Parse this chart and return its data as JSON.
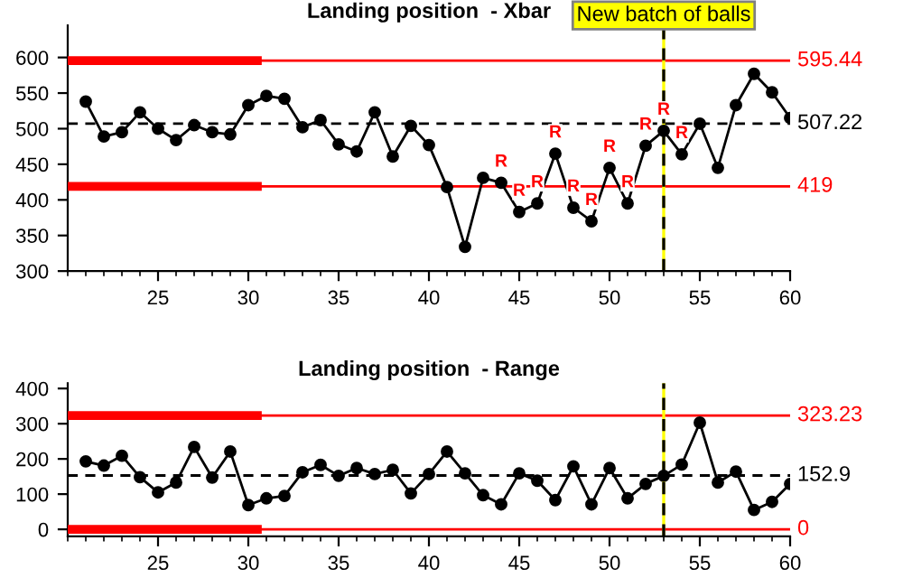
{
  "chart_data": [
    {
      "type": "line",
      "title": "Landing position  - Xbar",
      "xlim": [
        20,
        60
      ],
      "xticks": [
        25,
        30,
        35,
        40,
        45,
        50,
        55,
        60
      ],
      "ylim": [
        300,
        645
      ],
      "yticks": [
        300,
        350,
        400,
        450,
        500,
        550,
        600
      ],
      "grid": false,
      "legend": false,
      "series": [
        {
          "color": "#000000",
          "marker": "circle",
          "x": [
            21,
            22,
            23,
            24,
            25,
            26,
            27,
            28,
            29,
            30,
            31,
            32,
            33,
            34,
            35,
            36,
            37,
            38,
            39,
            40,
            41,
            42,
            43,
            44,
            45,
            46,
            47,
            48,
            49,
            50,
            51,
            52,
            53,
            54,
            55,
            56,
            57,
            58,
            59,
            60
          ],
          "values": [
            538,
            489,
            495,
            523,
            500,
            484,
            505,
            495,
            492,
            533,
            546,
            542,
            502,
            512,
            478,
            468,
            523,
            461,
            504,
            477,
            418,
            334,
            431,
            424,
            383,
            395,
            465,
            389,
            370,
            445,
            395,
            476,
            497,
            464,
            507,
            445,
            533,
            577,
            551,
            515
          ]
        },
        {
          "color": "#ff0000",
          "marker": "none",
          "x": [
            20,
            30.5
          ],
          "values": [
            595.44,
            595.44
          ]
        },
        {
          "color": "#ff0000",
          "marker": "none",
          "x": [
            20,
            30.5
          ],
          "values": [
            419,
            419
          ]
        }
      ],
      "ref_lines": [
        {
          "axis": "y",
          "value": 595.44,
          "label": "595.44",
          "color": "#ff0000",
          "line_style": "solid"
        },
        {
          "axis": "y",
          "value": 507.22,
          "label": "507.22",
          "color": "#000000",
          "line_style": "dashed"
        },
        {
          "axis": "y",
          "value": 419,
          "label": "419",
          "color": "#ff0000",
          "line_style": "solid"
        },
        {
          "axis": "x",
          "value": 53,
          "label": "New batch of balls",
          "color": "#ffff00",
          "line_style": "solid"
        },
        {
          "axis": "x",
          "value": 53,
          "color": "#000000",
          "line_style": "dashed"
        }
      ],
      "annotations": [
        {
          "text": "R",
          "x": 44,
          "y": 424
        },
        {
          "text": "R",
          "x": 45,
          "y": 383
        },
        {
          "text": "R",
          "x": 46,
          "y": 395
        },
        {
          "text": "R",
          "x": 47,
          "y": 465
        },
        {
          "text": "R",
          "x": 48,
          "y": 389
        },
        {
          "text": "R",
          "x": 49,
          "y": 370
        },
        {
          "text": "R",
          "x": 50,
          "y": 445
        },
        {
          "text": "R",
          "x": 51,
          "y": 395
        },
        {
          "text": "R",
          "x": 52,
          "y": 476
        },
        {
          "text": "R",
          "x": 53,
          "y": 497
        },
        {
          "text": "R",
          "x": 54,
          "y": 464
        }
      ]
    },
    {
      "type": "line",
      "title": "Landing position  - Range",
      "xlim": [
        20,
        60
      ],
      "xticks": [
        25,
        30,
        35,
        40,
        45,
        50,
        55,
        60
      ],
      "ylim": [
        -20,
        415
      ],
      "yticks": [
        0,
        100,
        200,
        300,
        400
      ],
      "grid": false,
      "legend": false,
      "series": [
        {
          "color": "#000000",
          "marker": "circle",
          "x": [
            21,
            22,
            23,
            24,
            25,
            26,
            27,
            28,
            29,
            30,
            31,
            32,
            33,
            34,
            35,
            36,
            37,
            38,
            39,
            40,
            41,
            42,
            43,
            44,
            45,
            46,
            47,
            48,
            49,
            50,
            51,
            52,
            53,
            54,
            55,
            56,
            57,
            58,
            59,
            60
          ],
          "values": [
            193,
            181,
            209,
            148,
            105,
            133,
            234,
            147,
            221,
            69,
            88,
            95,
            162,
            183,
            152,
            174,
            157,
            169,
            102,
            157,
            221,
            159,
            97,
            71,
            159,
            138,
            83,
            179,
            71,
            174,
            88,
            129,
            152,
            184,
            303,
            133,
            164,
            55,
            78,
            129
          ]
        },
        {
          "color": "#ff0000",
          "marker": "none",
          "x": [
            20,
            30.5
          ],
          "values": [
            323.23,
            323.23
          ]
        },
        {
          "color": "#ff0000",
          "marker": "none",
          "x": [
            20,
            30.5
          ],
          "values": [
            0,
            0
          ]
        }
      ],
      "ref_lines": [
        {
          "axis": "y",
          "value": 323.23,
          "label": "323.23",
          "color": "#ff0000",
          "line_style": "solid"
        },
        {
          "axis": "y",
          "value": 152.9,
          "label": "152.9",
          "color": "#000000",
          "line_style": "dashed"
        },
        {
          "axis": "y",
          "value": 0,
          "label": "0",
          "color": "#ff0000",
          "line_style": "solid"
        },
        {
          "axis": "x",
          "value": 53,
          "color": "#ffff00",
          "line_style": "solid"
        },
        {
          "axis": "x",
          "value": 53,
          "color": "#000000",
          "line_style": "dashed"
        }
      ]
    }
  ]
}
